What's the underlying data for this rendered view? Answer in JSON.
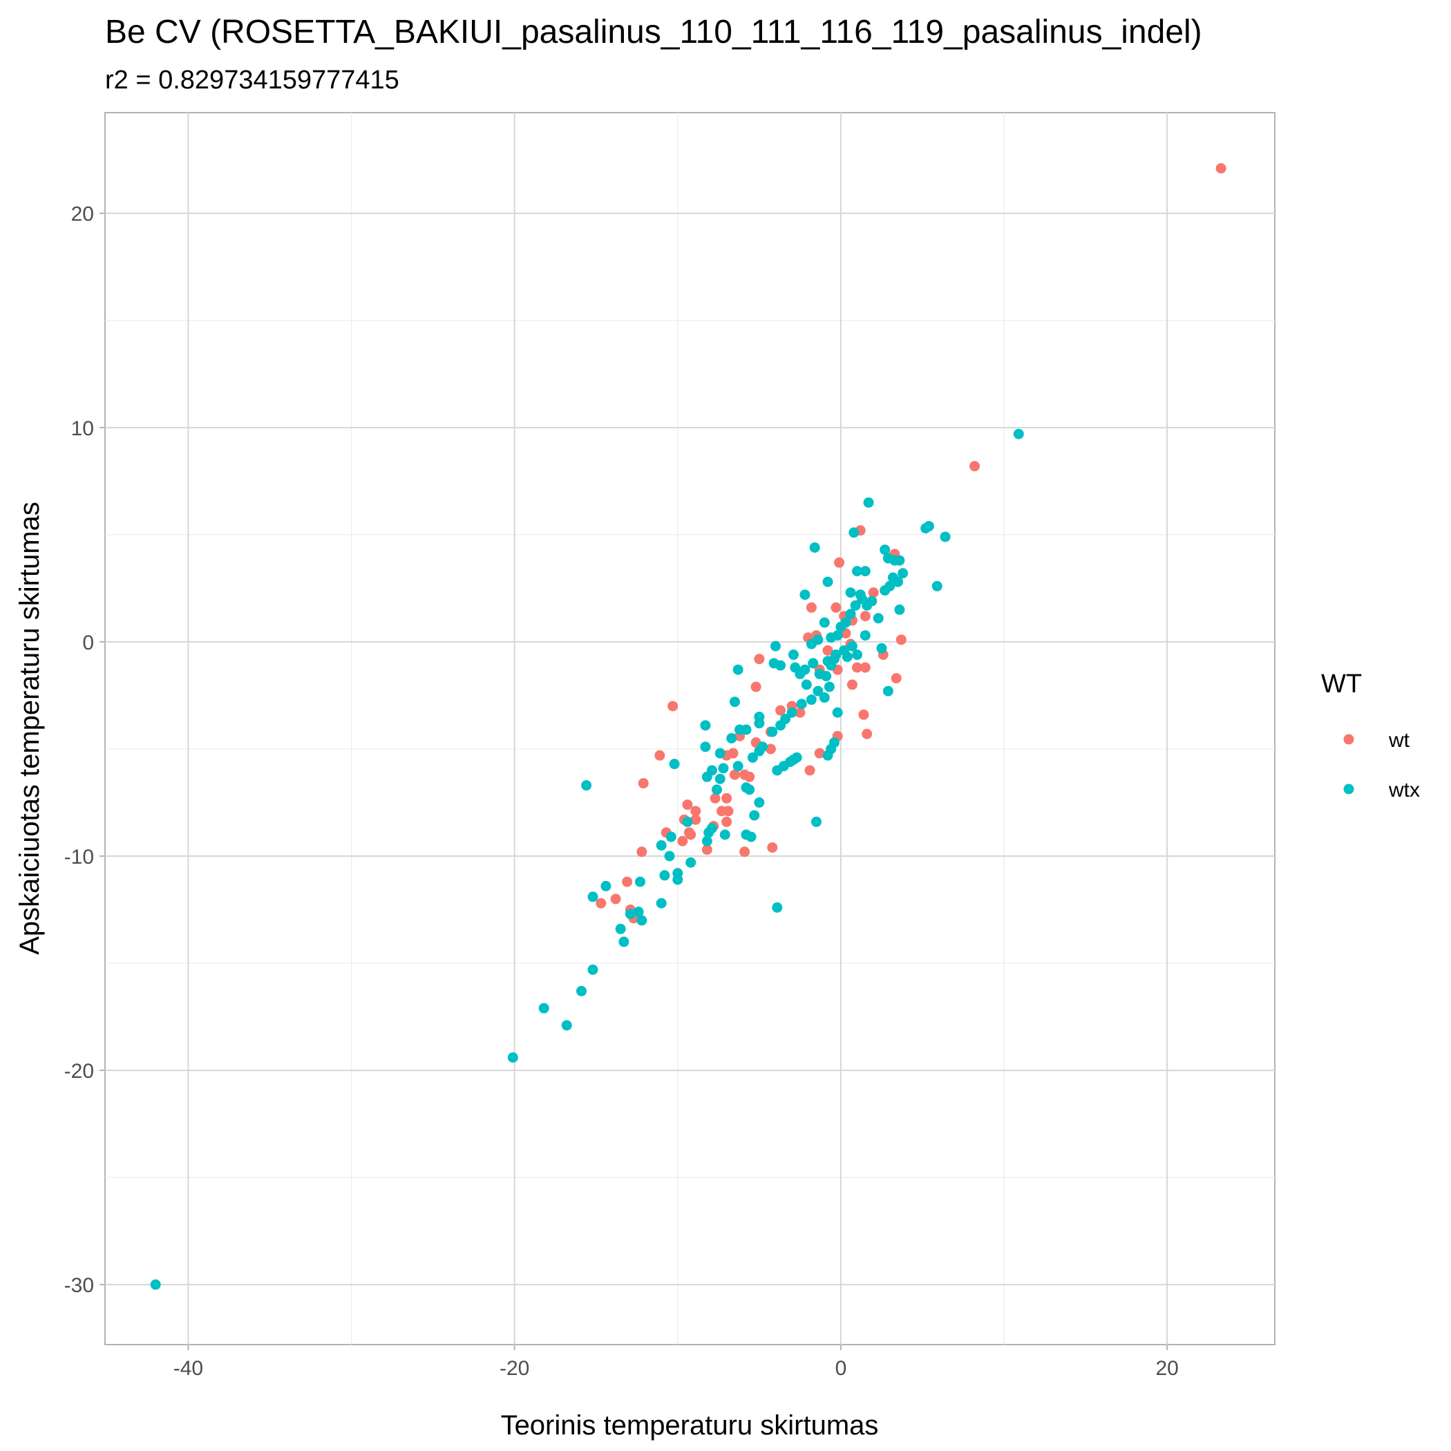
{
  "chart_data": {
    "type": "scatter",
    "title": "Be CV (ROSETTA_BAKIUI_pasalinus_110_111_116_119_pasalinus_indel)",
    "subtitle": "r2 = 0.829734159777415",
    "xlabel": "Teorinis temperaturu skirtumas",
    "ylabel": "Apskaiciuotas temperaturu skirtumas",
    "xlim": [
      -45.1,
      26.6
    ],
    "ylim": [
      -32.8,
      24.7
    ],
    "x_ticks": [
      -40,
      -20,
      0,
      20
    ],
    "y_ticks": [
      -30,
      -20,
      -10,
      0,
      10,
      20
    ],
    "grid": true,
    "legend": {
      "title": "WT",
      "position": "right"
    },
    "series": [
      {
        "name": "wt",
        "color": "#F8766D",
        "points": [
          [
            23.3,
            22.1
          ],
          [
            8.2,
            8.2
          ],
          [
            1.2,
            5.2
          ],
          [
            -0.1,
            3.7
          ],
          [
            3.3,
            4.1
          ],
          [
            2.0,
            2.3
          ],
          [
            -1.8,
            1.6
          ],
          [
            -0.3,
            1.6
          ],
          [
            0.2,
            1.2
          ],
          [
            0.7,
            1.0
          ],
          [
            1.5,
            1.2
          ],
          [
            -1.5,
            0.3
          ],
          [
            -2.0,
            0.2
          ],
          [
            0.3,
            0.4
          ],
          [
            0.6,
            -0.1
          ],
          [
            3.7,
            0.1
          ],
          [
            -0.8,
            -0.4
          ],
          [
            2.6,
            -0.6
          ],
          [
            -1.3,
            -1.3
          ],
          [
            -0.2,
            -1.3
          ],
          [
            1.0,
            -1.2
          ],
          [
            1.5,
            -1.2
          ],
          [
            3.4,
            -1.7
          ],
          [
            -5.0,
            -0.8
          ],
          [
            -5.2,
            -2.1
          ],
          [
            0.7,
            -2.0
          ],
          [
            -3.7,
            -3.2
          ],
          [
            -3.0,
            -3.0
          ],
          [
            -2.5,
            -3.3
          ],
          [
            1.4,
            -3.4
          ],
          [
            -10.3,
            -3.0
          ],
          [
            -0.2,
            -4.4
          ],
          [
            1.6,
            -4.3
          ],
          [
            -6.2,
            -4.4
          ],
          [
            -4.3,
            -4.2
          ],
          [
            -5.2,
            -4.7
          ],
          [
            -1.3,
            -5.2
          ],
          [
            -11.1,
            -5.3
          ],
          [
            -7.0,
            -5.3
          ],
          [
            -6.6,
            -5.2
          ],
          [
            -4.3,
            -5.0
          ],
          [
            -12.1,
            -6.6
          ],
          [
            -1.9,
            -6.0
          ],
          [
            -6.5,
            -6.2
          ],
          [
            -5.9,
            -6.2
          ],
          [
            -5.6,
            -6.3
          ],
          [
            -7.7,
            -7.3
          ],
          [
            -7.0,
            -7.3
          ],
          [
            -9.4,
            -7.6
          ],
          [
            -8.9,
            -7.9
          ],
          [
            -7.3,
            -7.9
          ],
          [
            -6.9,
            -7.9
          ],
          [
            -9.6,
            -8.3
          ],
          [
            -8.9,
            -8.3
          ],
          [
            -7.8,
            -8.6
          ],
          [
            -7.0,
            -8.4
          ],
          [
            -9.3,
            -8.9
          ],
          [
            -10.7,
            -8.9
          ],
          [
            -9.2,
            -9.0
          ],
          [
            -9.7,
            -9.3
          ],
          [
            -8.2,
            -9.7
          ],
          [
            -5.9,
            -9.8
          ],
          [
            -4.2,
            -9.6
          ],
          [
            -12.2,
            -9.8
          ],
          [
            -13.1,
            -11.2
          ],
          [
            -13.8,
            -12.0
          ],
          [
            -14.7,
            -12.2
          ],
          [
            -12.9,
            -12.5
          ],
          [
            -12.7,
            -12.9
          ]
        ]
      },
      {
        "name": "wtx",
        "color": "#00BFC4",
        "points": [
          [
            -42.0,
            -30.0
          ],
          [
            -20.1,
            -19.4
          ],
          [
            -16.8,
            -17.9
          ],
          [
            -18.2,
            -17.1
          ],
          [
            -15.9,
            -16.3
          ],
          [
            -15.2,
            -15.3
          ],
          [
            -13.3,
            -14.0
          ],
          [
            -13.5,
            -13.4
          ],
          [
            -12.9,
            -12.7
          ],
          [
            -12.4,
            -12.6
          ],
          [
            -12.2,
            -13.0
          ],
          [
            -11.0,
            -12.2
          ],
          [
            -15.2,
            -11.9
          ],
          [
            -14.4,
            -11.4
          ],
          [
            -12.3,
            -11.2
          ],
          [
            -10.8,
            -10.9
          ],
          [
            -10.0,
            -11.1
          ],
          [
            -10.0,
            -10.8
          ],
          [
            -10.5,
            -10.0
          ],
          [
            -9.2,
            -10.3
          ],
          [
            -11.0,
            -9.5
          ],
          [
            -10.4,
            -9.1
          ],
          [
            -9.4,
            -8.4
          ],
          [
            -8.1,
            -8.9
          ],
          [
            -7.1,
            -9.0
          ],
          [
            -7.9,
            -8.7
          ],
          [
            -8.2,
            -9.3
          ],
          [
            -3.9,
            -12.4
          ],
          [
            -1.5,
            -8.4
          ],
          [
            -5.8,
            -9.0
          ],
          [
            -5.5,
            -9.1
          ],
          [
            -5.3,
            -8.1
          ],
          [
            -5.0,
            -7.5
          ],
          [
            -5.8,
            -6.8
          ],
          [
            -5.6,
            -6.9
          ],
          [
            -7.6,
            -6.9
          ],
          [
            -8.2,
            -6.3
          ],
          [
            -7.4,
            -6.4
          ],
          [
            -7.9,
            -6.0
          ],
          [
            -7.2,
            -5.9
          ],
          [
            -6.3,
            -5.8
          ],
          [
            -10.2,
            -5.7
          ],
          [
            -15.6,
            -6.7
          ],
          [
            -3.9,
            -6.0
          ],
          [
            -3.5,
            -5.8
          ],
          [
            -3.1,
            -5.6
          ],
          [
            -2.9,
            -5.5
          ],
          [
            -2.7,
            -5.4
          ],
          [
            -0.8,
            -5.3
          ],
          [
            -0.6,
            -5.0
          ],
          [
            -0.4,
            -4.7
          ],
          [
            -5.4,
            -5.4
          ],
          [
            -5.0,
            -5.1
          ],
          [
            -4.8,
            -4.9
          ],
          [
            -7.4,
            -5.2
          ],
          [
            -8.3,
            -4.9
          ],
          [
            -6.7,
            -4.5
          ],
          [
            -6.2,
            -4.1
          ],
          [
            -5.8,
            -4.1
          ],
          [
            -5.0,
            -3.8
          ],
          [
            -5.0,
            -3.5
          ],
          [
            -4.2,
            -4.2
          ],
          [
            -3.7,
            -3.9
          ],
          [
            -3.4,
            -3.6
          ],
          [
            -3.0,
            -3.3
          ],
          [
            -2.4,
            -2.9
          ],
          [
            -1.8,
            -2.7
          ],
          [
            -1.4,
            -2.3
          ],
          [
            -1.0,
            -2.6
          ],
          [
            -0.7,
            -2.1
          ],
          [
            -0.2,
            -3.3
          ],
          [
            -8.3,
            -3.9
          ],
          [
            -6.5,
            -2.8
          ],
          [
            -6.3,
            -1.3
          ],
          [
            -4.0,
            -0.2
          ],
          [
            -4.1,
            -1.0
          ],
          [
            -3.7,
            -1.1
          ],
          [
            -2.9,
            -0.6
          ],
          [
            -2.8,
            -1.2
          ],
          [
            -2.5,
            -1.5
          ],
          [
            -2.2,
            -1.3
          ],
          [
            -2.1,
            -2.0
          ],
          [
            -1.7,
            -1.0
          ],
          [
            -1.3,
            -1.5
          ],
          [
            -0.9,
            -1.6
          ],
          [
            -0.8,
            -0.9
          ],
          [
            -0.6,
            -1.1
          ],
          [
            -0.4,
            -0.8
          ],
          [
            -0.3,
            -0.6
          ],
          [
            0.2,
            -0.4
          ],
          [
            0.4,
            -0.7
          ],
          [
            0.7,
            -0.2
          ],
          [
            1.0,
            -0.6
          ],
          [
            2.5,
            -0.3
          ],
          [
            -1.8,
            -0.1
          ],
          [
            -1.4,
            0.1
          ],
          [
            -1.0,
            0.9
          ],
          [
            -0.6,
            0.2
          ],
          [
            -0.2,
            0.3
          ],
          [
            0.0,
            0.7
          ],
          [
            0.3,
            0.9
          ],
          [
            0.6,
            1.3
          ],
          [
            0.9,
            1.7
          ],
          [
            1.3,
            2.0
          ],
          [
            1.6,
            1.7
          ],
          [
            1.9,
            1.9
          ],
          [
            1.5,
            0.3
          ],
          [
            2.3,
            1.1
          ],
          [
            2.7,
            2.4
          ],
          [
            3.0,
            2.6
          ],
          [
            3.2,
            3.0
          ],
          [
            3.5,
            2.8
          ],
          [
            3.6,
            1.5
          ],
          [
            3.8,
            3.2
          ],
          [
            2.9,
            3.9
          ],
          [
            3.3,
            3.8
          ],
          [
            3.6,
            3.8
          ],
          [
            2.7,
            4.3
          ],
          [
            1.0,
            3.3
          ],
          [
            1.5,
            3.3
          ],
          [
            -2.2,
            2.2
          ],
          [
            -0.8,
            2.8
          ],
          [
            0.6,
            2.3
          ],
          [
            1.2,
            2.2
          ],
          [
            -1.6,
            4.4
          ],
          [
            0.8,
            5.1
          ],
          [
            1.7,
            6.5
          ],
          [
            5.2,
            5.3
          ],
          [
            5.4,
            5.4
          ],
          [
            6.4,
            4.9
          ],
          [
            5.9,
            2.6
          ],
          [
            2.9,
            -2.3
          ],
          [
            10.9,
            9.7
          ]
        ]
      }
    ]
  }
}
